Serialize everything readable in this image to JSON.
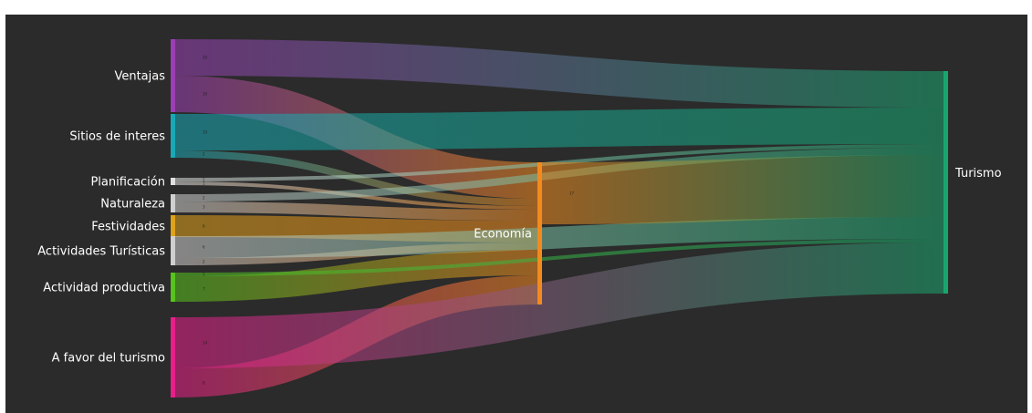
{
  "chart_data": {
    "type": "sankey",
    "nodes": [
      {
        "id": "ventajas",
        "label": "Ventajas",
        "color": "#9b3fb5"
      },
      {
        "id": "sitios",
        "label": "Sitios de interes",
        "color": "#18a9b8"
      },
      {
        "id": "planificacion",
        "label": "Planificación",
        "color": "#e0e0e0"
      },
      {
        "id": "naturaleza",
        "label": "Naturaleza",
        "color": "#d0d0d0"
      },
      {
        "id": "festividades",
        "label": "Festividades",
        "color": "#e0a219"
      },
      {
        "id": "actividades",
        "label": "Actividades Turísticas",
        "color": "#cfcfcf"
      },
      {
        "id": "productiva",
        "label": "Actividad productiva",
        "color": "#57c31d"
      },
      {
        "id": "favor",
        "label": "A favor del turismo",
        "color": "#e91e8a"
      },
      {
        "id": "economia",
        "label": "Economía",
        "color": "#f28a1e"
      },
      {
        "id": "turismo",
        "label": "Turismo",
        "color": "#18a66e"
      }
    ],
    "links": [
      {
        "source": "ventajas",
        "target": "turismo",
        "value": 10
      },
      {
        "source": "ventajas",
        "target": "economia",
        "value": 10
      },
      {
        "source": "sitios",
        "target": "turismo",
        "value": 10
      },
      {
        "source": "sitios",
        "target": "economia",
        "value": 2
      },
      {
        "source": "planificacion",
        "target": "economia",
        "value": 1
      },
      {
        "source": "planificacion",
        "target": "turismo",
        "value": 1
      },
      {
        "source": "naturaleza",
        "target": "economia",
        "value": 3
      },
      {
        "source": "naturaleza",
        "target": "turismo",
        "value": 2
      },
      {
        "source": "festividades",
        "target": "economia",
        "value": 6
      },
      {
        "source": "actividades",
        "target": "economia",
        "value": 2
      },
      {
        "source": "actividades",
        "target": "turismo",
        "value": 6
      },
      {
        "source": "productiva",
        "target": "economia",
        "value": 7
      },
      {
        "source": "productiva",
        "target": "turismo",
        "value": 1
      },
      {
        "source": "favor",
        "target": "economia",
        "value": 8
      },
      {
        "source": "favor",
        "target": "turismo",
        "value": 14
      },
      {
        "source": "economia",
        "target": "turismo",
        "value": 17
      }
    ]
  }
}
